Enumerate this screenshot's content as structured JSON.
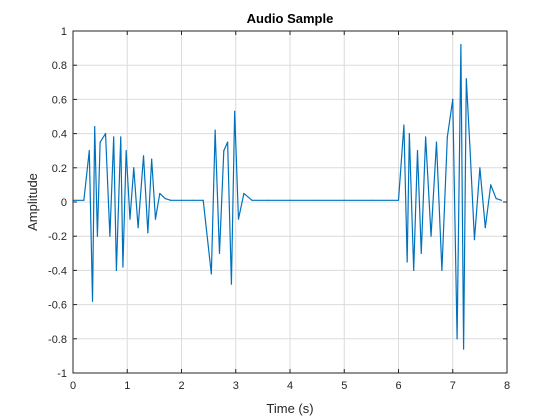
{
  "chart_data": {
    "type": "line",
    "title": "Audio Sample",
    "xlabel": "Time (s)",
    "ylabel": "Amplitude",
    "xlim": [
      0,
      8
    ],
    "ylim": [
      -1,
      1
    ],
    "grid": true,
    "line_color": "#0072BD",
    "x_ticks": [
      0,
      1,
      2,
      3,
      4,
      5,
      6,
      7,
      8
    ],
    "y_ticks": [
      -1,
      -0.8,
      -0.6,
      -0.4,
      -0.2,
      0,
      0.2,
      0.4,
      0.6,
      0.8,
      1
    ],
    "x_tick_labels": [
      "0",
      "1",
      "2",
      "3",
      "4",
      "5",
      "6",
      "7",
      "8"
    ],
    "y_tick_labels": [
      "-1",
      "-0.8",
      "-0.6",
      "-0.4",
      "-0.2",
      "0",
      "0.2",
      "0.4",
      "0.6",
      "0.8",
      "1"
    ],
    "series": [
      {
        "values_note": "",
        "x": [
          0.0,
          0.2,
          0.3,
          0.36,
          0.4,
          0.45,
          0.5,
          0.6,
          0.68,
          0.75,
          0.8,
          0.88,
          0.92,
          0.98,
          1.05,
          1.12,
          1.2,
          1.3,
          1.38,
          1.45,
          1.52,
          1.6,
          1.7,
          1.8,
          2.0,
          2.2,
          2.4,
          2.55,
          2.62,
          2.7,
          2.78,
          2.85,
          2.92,
          2.98,
          3.05,
          3.15,
          3.3,
          3.6,
          4.0,
          4.5,
          5.0,
          5.5,
          6.0,
          6.1,
          6.16,
          6.2,
          6.28,
          6.35,
          6.42,
          6.5,
          6.6,
          6.7,
          6.8,
          6.9,
          7.0,
          7.08,
          7.15,
          7.2,
          7.25,
          7.32,
          7.4,
          7.5,
          7.6,
          7.7,
          7.8,
          7.9
        ],
        "y": [
          0.01,
          0.01,
          0.3,
          -0.58,
          0.44,
          -0.2,
          0.35,
          0.4,
          -0.2,
          0.38,
          -0.4,
          0.38,
          -0.38,
          0.3,
          -0.1,
          0.2,
          -0.15,
          0.27,
          -0.18,
          0.25,
          -0.1,
          0.05,
          0.02,
          0.01,
          0.01,
          0.01,
          0.01,
          -0.42,
          0.42,
          -0.3,
          0.3,
          0.35,
          -0.48,
          0.53,
          -0.1,
          0.05,
          0.01,
          0.01,
          0.01,
          0.01,
          0.01,
          0.01,
          0.01,
          0.45,
          -0.35,
          0.4,
          -0.4,
          0.3,
          -0.3,
          0.38,
          -0.2,
          0.35,
          -0.4,
          0.38,
          0.6,
          -0.8,
          0.92,
          -0.86,
          0.72,
          0.3,
          -0.22,
          0.2,
          -0.15,
          0.1,
          0.02,
          0.01
        ]
      }
    ]
  }
}
